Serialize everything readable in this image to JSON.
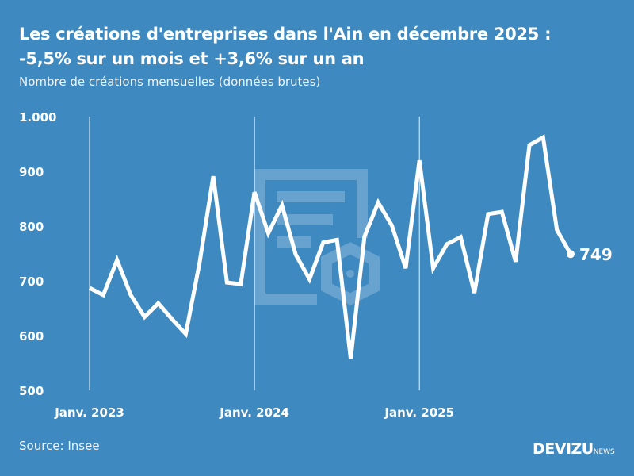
{
  "title_line1": "Les créations d'entreprises dans l'Ain en décembre 2025 :",
  "title_line2": "-5,5% sur un mois et +3,6% sur un an",
  "subtitle": "Nombre de créations mensuelles (données brutes)",
  "source": "Source: Insee",
  "brand": {
    "name": "DEVIZU",
    "suffix": "NEWS"
  },
  "colors": {
    "background": "#3d89c0",
    "line": "#ffffff"
  },
  "chart_data": {
    "type": "line",
    "x_start": "2023-01",
    "x_end": "2025-12",
    "x_tick_labels": [
      "Janv. 2023",
      "Janv. 2024",
      "Janv. 2025"
    ],
    "y_tick_labels": [
      "500",
      "600",
      "700",
      "800",
      "900",
      "1.000"
    ],
    "ylim": [
      500,
      1000
    ],
    "grid": "vertical lines at January",
    "values": [
      687,
      674,
      738,
      674,
      634,
      659,
      630,
      603,
      732,
      891,
      697,
      694,
      862,
      787,
      838,
      748,
      703,
      770,
      775,
      558,
      781,
      843,
      801,
      723,
      920,
      723,
      767,
      780,
      678,
      822,
      826,
      735,
      948,
      962,
      793,
      749
    ],
    "last_label": "749"
  }
}
